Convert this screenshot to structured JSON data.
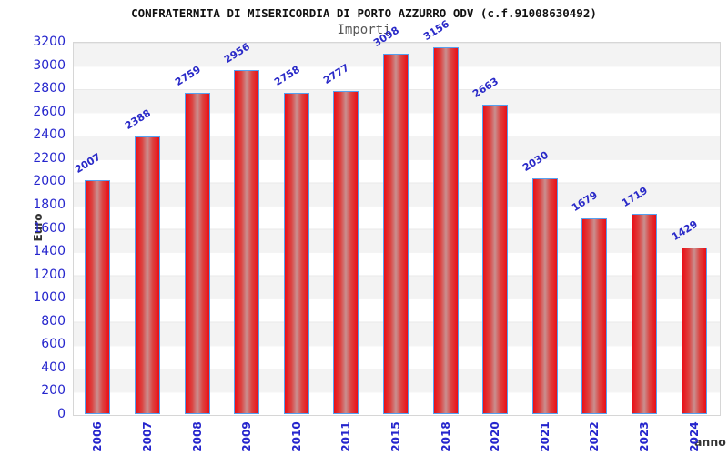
{
  "header": {
    "title": "CONFRATERNITA DI MISERICORDIA DI PORTO AZZURRO ODV (c.f.91008630492)",
    "subtitle": "Importi"
  },
  "chart_data": {
    "type": "bar",
    "title": "CONFRATERNITA DI MISERICORDIA DI PORTO AZZURRO ODV (c.f.91008630492)",
    "subtitle": "Importi",
    "xlabel": "anno",
    "ylabel": "Euro",
    "categories": [
      "2006",
      "2007",
      "2008",
      "2009",
      "2010",
      "2011",
      "2015",
      "2018",
      "2020",
      "2021",
      "2022",
      "2023",
      "2024"
    ],
    "values": [
      2007,
      2388,
      2759,
      2956,
      2758,
      2777,
      3098,
      3156,
      2663,
      2030,
      1679,
      1719,
      1429
    ],
    "ylim": [
      0,
      3200
    ],
    "yticks": [
      0,
      200,
      400,
      600,
      800,
      1000,
      1200,
      1400,
      1600,
      1800,
      2000,
      2200,
      2400,
      2600,
      2800,
      3000,
      3200
    ],
    "legend": "none",
    "grid": "alternating horizontal bands every 200",
    "colors": {
      "bar_edge": "#ea0e16",
      "bar_center": "#c99090",
      "bar_border": "#55a0f0",
      "tick_label": "#2525cd",
      "band_gray": "#f3f3f3",
      "band_white": "#ffffff",
      "title": "#111111",
      "subtitle": "#555555",
      "axis_title": "#333333"
    }
  }
}
